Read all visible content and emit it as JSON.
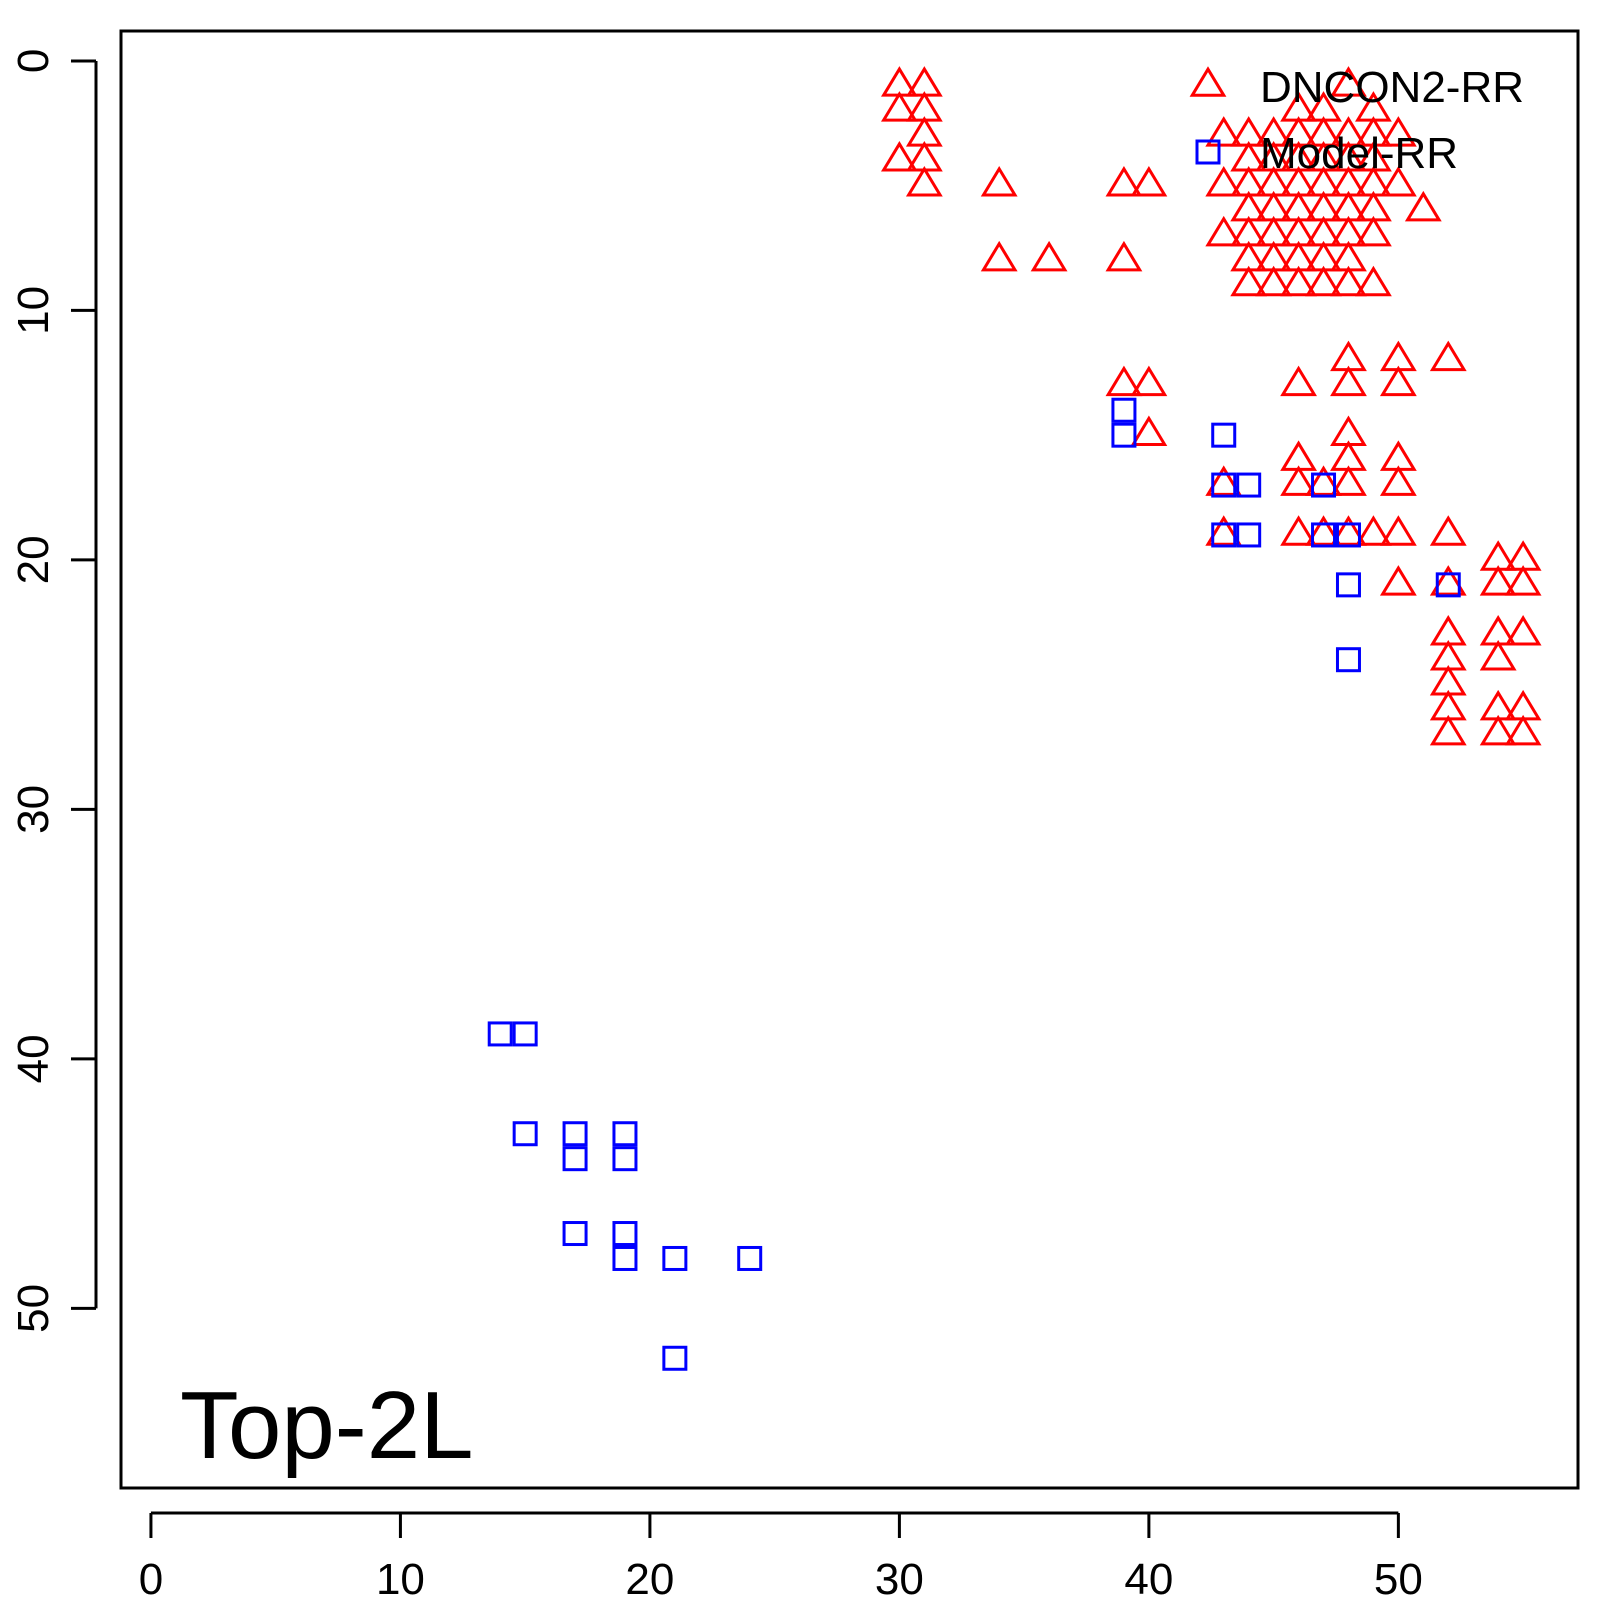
{
  "chart_data": {
    "type": "scatter",
    "title": "",
    "xlabel": "",
    "ylabel": "",
    "xlim": [
      -1.2,
      57.2
    ],
    "ylim": [
      -1.2,
      57.2
    ],
    "y_axis_reversed": true,
    "x_ticks": [
      0,
      10,
      20,
      30,
      40,
      50
    ],
    "y_ticks": [
      0,
      10,
      20,
      30,
      40,
      50
    ],
    "grid": false,
    "legend_position": "top-right",
    "annotation": "Top-2L",
    "series": [
      {
        "name": "DNCON2-RR",
        "marker": "triangle-open",
        "color": "#ff0000",
        "points": [
          [
            30,
            1
          ],
          [
            31,
            1
          ],
          [
            30,
            2
          ],
          [
            31,
            2
          ],
          [
            31,
            3
          ],
          [
            30,
            4
          ],
          [
            31,
            4
          ],
          [
            31,
            5
          ],
          [
            34,
            5
          ],
          [
            39,
            5
          ],
          [
            40,
            5
          ],
          [
            34,
            8
          ],
          [
            36,
            8
          ],
          [
            39,
            8
          ],
          [
            48,
            1
          ],
          [
            46,
            2
          ],
          [
            47,
            2
          ],
          [
            49,
            2
          ],
          [
            43,
            3
          ],
          [
            44,
            3
          ],
          [
            45,
            3
          ],
          [
            46,
            3
          ],
          [
            47,
            3
          ],
          [
            48,
            3
          ],
          [
            49,
            3
          ],
          [
            50,
            3
          ],
          [
            44,
            4
          ],
          [
            45,
            4
          ],
          [
            46,
            4
          ],
          [
            47,
            4
          ],
          [
            48,
            4
          ],
          [
            49,
            4
          ],
          [
            43,
            5
          ],
          [
            44,
            5
          ],
          [
            45,
            5
          ],
          [
            46,
            5
          ],
          [
            47,
            5
          ],
          [
            48,
            5
          ],
          [
            49,
            5
          ],
          [
            50,
            5
          ],
          [
            44,
            6
          ],
          [
            45,
            6
          ],
          [
            46,
            6
          ],
          [
            47,
            6
          ],
          [
            48,
            6
          ],
          [
            49,
            6
          ],
          [
            51,
            6
          ],
          [
            43,
            7
          ],
          [
            44,
            7
          ],
          [
            45,
            7
          ],
          [
            46,
            7
          ],
          [
            47,
            7
          ],
          [
            48,
            7
          ],
          [
            49,
            7
          ],
          [
            44,
            8
          ],
          [
            45,
            8
          ],
          [
            46,
            8
          ],
          [
            47,
            8
          ],
          [
            48,
            8
          ],
          [
            44,
            9
          ],
          [
            45,
            9
          ],
          [
            46,
            9
          ],
          [
            47,
            9
          ],
          [
            48,
            9
          ],
          [
            49,
            9
          ],
          [
            48,
            12
          ],
          [
            50,
            12
          ],
          [
            52,
            12
          ],
          [
            39,
            13
          ],
          [
            40,
            13
          ],
          [
            46,
            13
          ],
          [
            48,
            13
          ],
          [
            50,
            13
          ],
          [
            40,
            15
          ],
          [
            48,
            15
          ],
          [
            46,
            16
          ],
          [
            48,
            16
          ],
          [
            50,
            16
          ],
          [
            43,
            17
          ],
          [
            46,
            17
          ],
          [
            47,
            17
          ],
          [
            48,
            17
          ],
          [
            50,
            17
          ],
          [
            43,
            19
          ],
          [
            46,
            19
          ],
          [
            47,
            19
          ],
          [
            48,
            19
          ],
          [
            49,
            19
          ],
          [
            50,
            19
          ],
          [
            52,
            19
          ],
          [
            54,
            20
          ],
          [
            55,
            20
          ],
          [
            50,
            21
          ],
          [
            52,
            21
          ],
          [
            54,
            21
          ],
          [
            55,
            21
          ],
          [
            52,
            23
          ],
          [
            54,
            23
          ],
          [
            55,
            23
          ],
          [
            52,
            24
          ],
          [
            54,
            24
          ],
          [
            52,
            25
          ],
          [
            52,
            26
          ],
          [
            54,
            26
          ],
          [
            55,
            26
          ],
          [
            52,
            27
          ],
          [
            54,
            27
          ],
          [
            55,
            27
          ]
        ]
      },
      {
        "name": "Model-RR",
        "marker": "square-open",
        "color": "#0000ff",
        "points": [
          [
            39,
            14
          ],
          [
            39,
            15
          ],
          [
            43,
            15
          ],
          [
            43,
            17
          ],
          [
            44,
            17
          ],
          [
            47,
            17
          ],
          [
            43,
            19
          ],
          [
            44,
            19
          ],
          [
            47,
            19
          ],
          [
            48,
            19
          ],
          [
            48,
            21
          ],
          [
            52,
            21
          ],
          [
            48,
            24
          ],
          [
            14,
            39
          ],
          [
            15,
            39
          ],
          [
            15,
            43
          ],
          [
            17,
            43
          ],
          [
            19,
            43
          ],
          [
            17,
            44
          ],
          [
            19,
            44
          ],
          [
            17,
            47
          ],
          [
            19,
            47
          ],
          [
            19,
            48
          ],
          [
            21,
            48
          ],
          [
            24,
            48
          ],
          [
            21,
            52
          ]
        ]
      }
    ]
  }
}
